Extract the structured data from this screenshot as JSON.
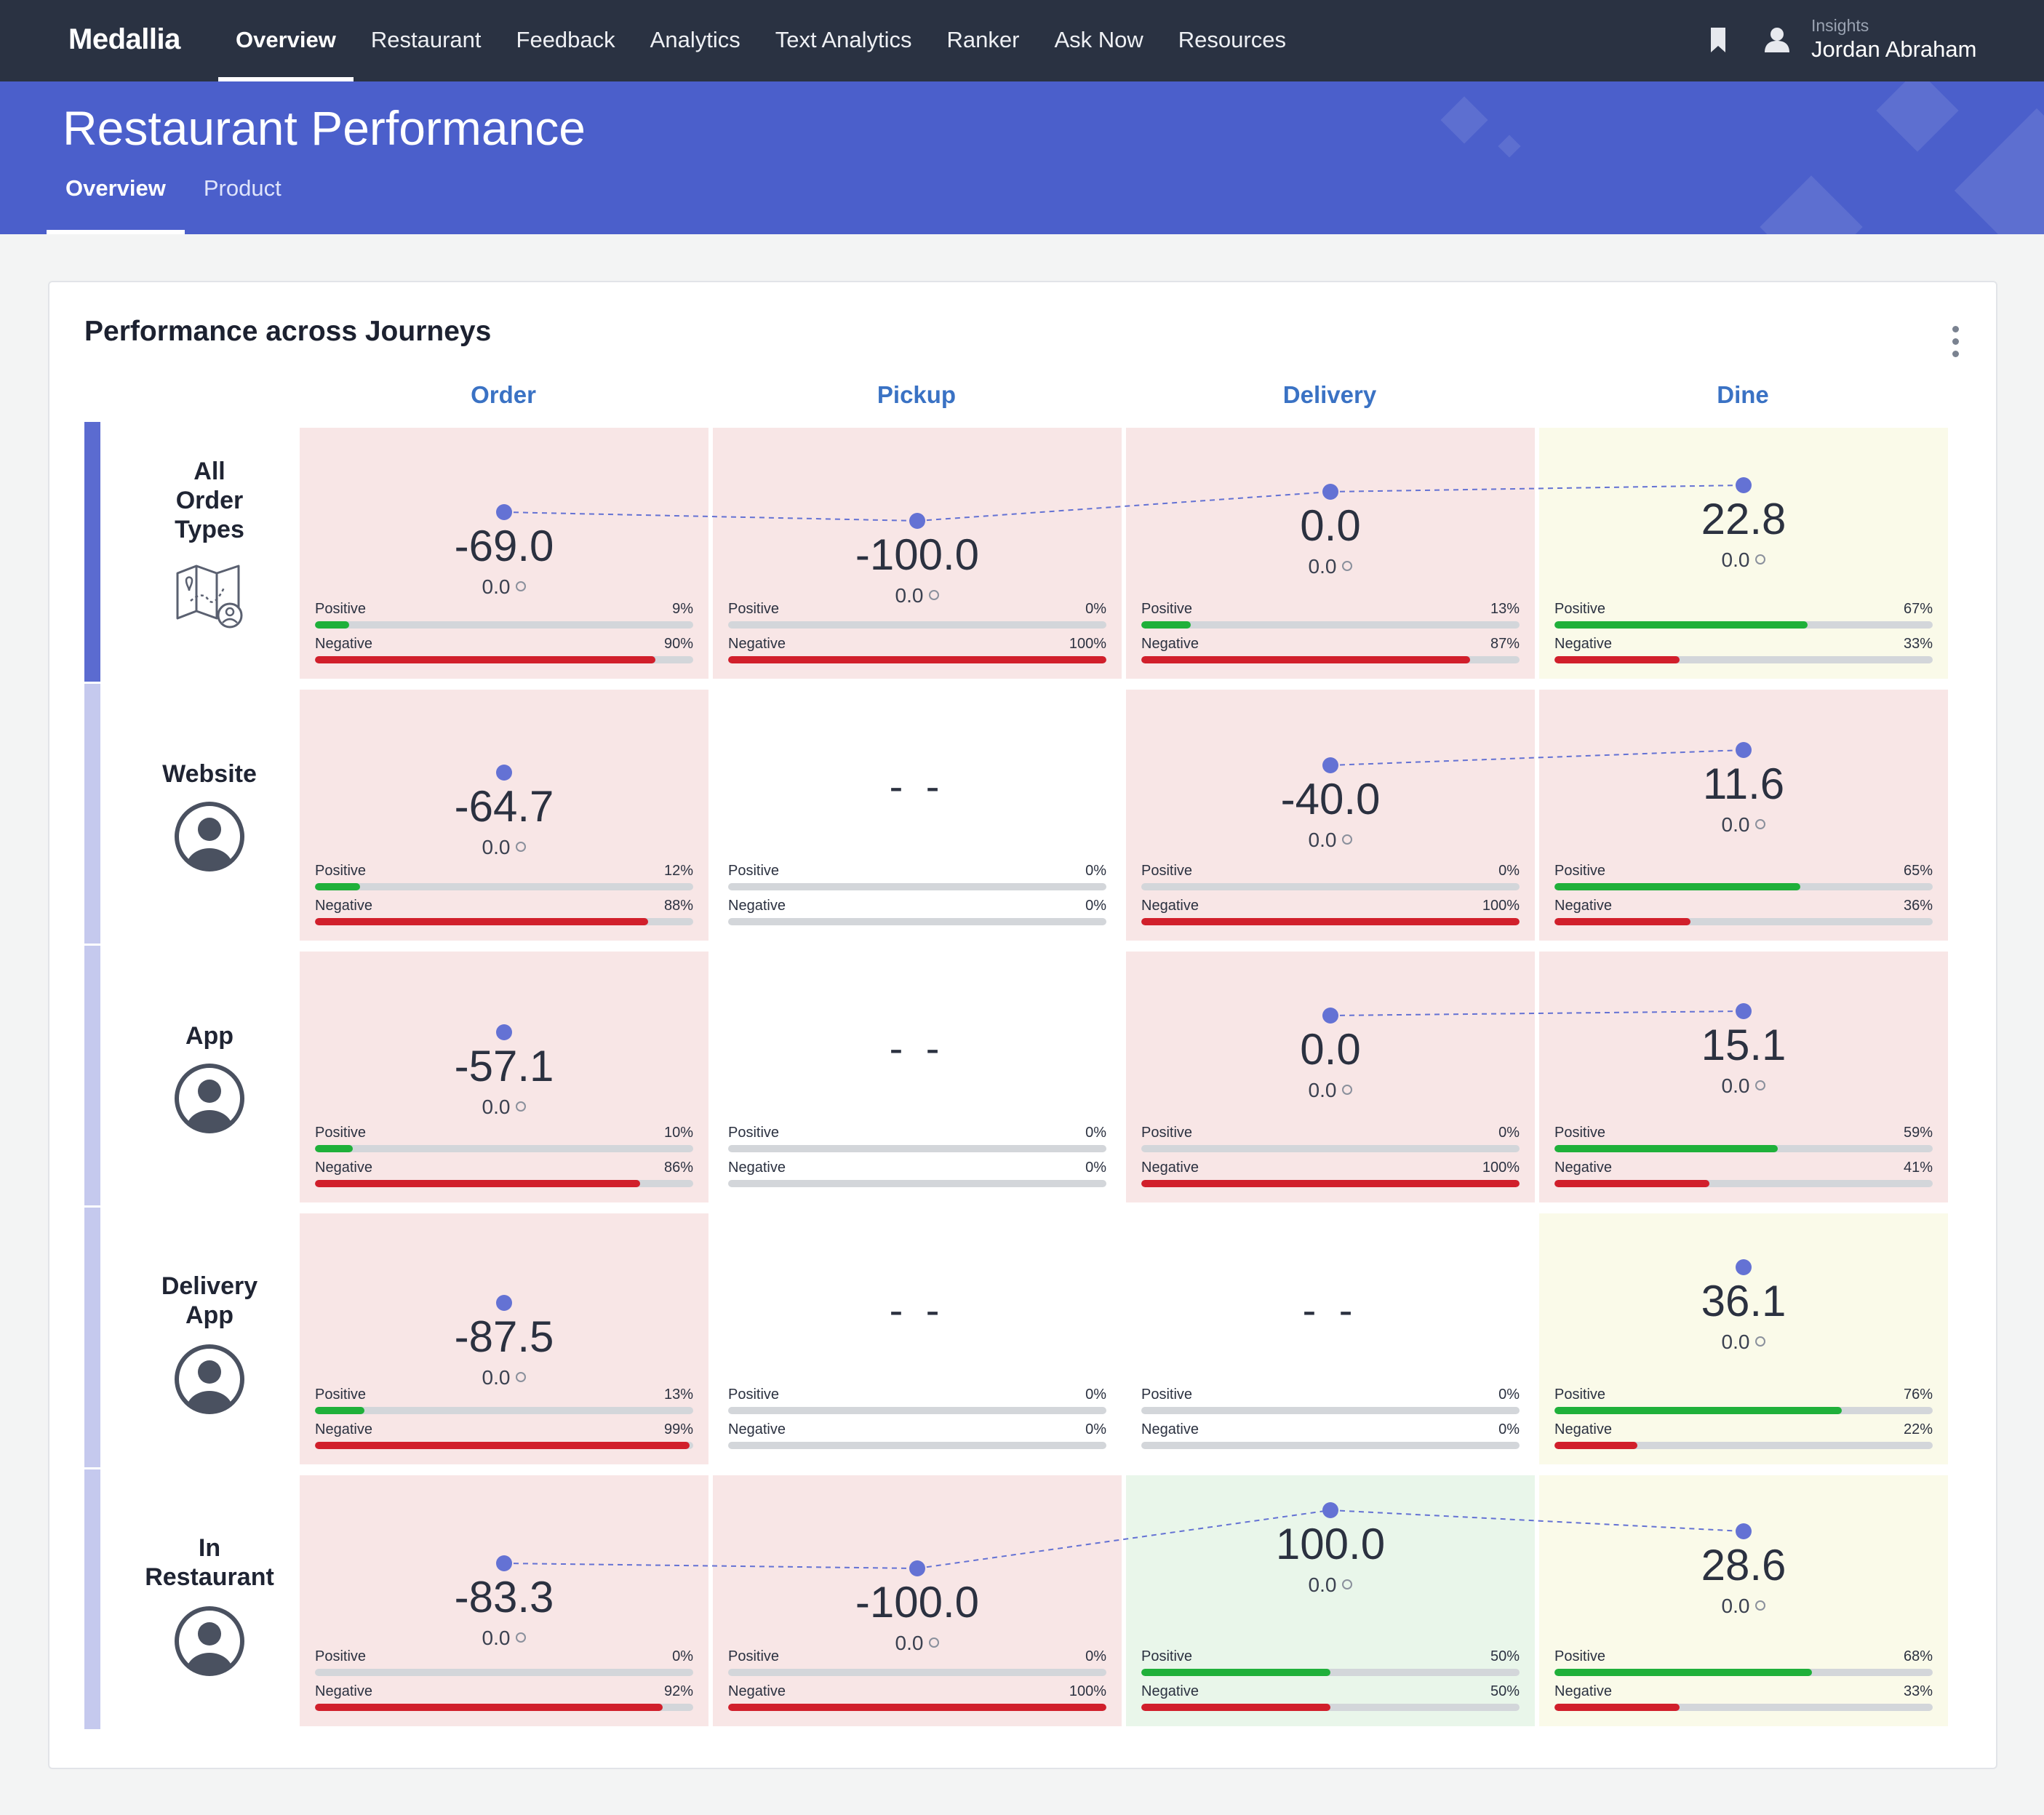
{
  "nav": {
    "brand": "Medallia",
    "items": [
      "Overview",
      "Restaurant",
      "Feedback",
      "Analytics",
      "Text Analytics",
      "Ranker",
      "Ask Now",
      "Resources"
    ],
    "active_index": 0,
    "user_sub": "Insights",
    "user_name": "Jordan Abraham"
  },
  "header": {
    "title": "Restaurant Performance",
    "tabs": [
      "Overview",
      "Product"
    ],
    "active_tab": 0
  },
  "card": {
    "title": "Performance across Journeys",
    "columns": [
      "Order",
      "Pickup",
      "Delivery",
      "Dine"
    ],
    "pos_label": "Positive",
    "neg_label": "Negative",
    "sub_value": "0.0",
    "empty_text": "- -",
    "rows": [
      {
        "label": "All Order Types",
        "icon": "map-user-icon",
        "cells": [
          {
            "score": "-69.0",
            "pos": 9,
            "neg": 90,
            "tone": "red"
          },
          {
            "score": "-100.0",
            "pos": 0,
            "neg": 100,
            "tone": "red"
          },
          {
            "score": "0.0",
            "pos": 13,
            "neg": 87,
            "tone": "red"
          },
          {
            "score": "22.8",
            "pos": 67,
            "neg": 33,
            "tone": "yellow"
          }
        ]
      },
      {
        "label": "Website",
        "icon": "user-circle-icon",
        "cells": [
          {
            "score": "-64.7",
            "pos": 12,
            "neg": 88,
            "tone": "red"
          },
          {
            "score": null,
            "pos": 0,
            "neg": 0,
            "tone": "white"
          },
          {
            "score": "-40.0",
            "pos": 0,
            "neg": 100,
            "tone": "red"
          },
          {
            "score": "11.6",
            "pos": 65,
            "neg": 36,
            "tone": "red"
          }
        ]
      },
      {
        "label": "App",
        "icon": "user-circle-icon",
        "cells": [
          {
            "score": "-57.1",
            "pos": 10,
            "neg": 86,
            "tone": "red"
          },
          {
            "score": null,
            "pos": 0,
            "neg": 0,
            "tone": "white"
          },
          {
            "score": "0.0",
            "pos": 0,
            "neg": 100,
            "tone": "red"
          },
          {
            "score": "15.1",
            "pos": 59,
            "neg": 41,
            "tone": "red"
          }
        ]
      },
      {
        "label": "Delivery App",
        "icon": "user-circle-icon",
        "cells": [
          {
            "score": "-87.5",
            "pos": 13,
            "neg": 99,
            "tone": "red"
          },
          {
            "score": null,
            "pos": 0,
            "neg": 0,
            "tone": "white"
          },
          {
            "score": null,
            "pos": 0,
            "neg": 0,
            "tone": "white"
          },
          {
            "score": "36.1",
            "pos": 76,
            "neg": 22,
            "tone": "yellow"
          }
        ]
      },
      {
        "label": "In Restaurant",
        "icon": "user-circle-icon",
        "cells": [
          {
            "score": "-83.3",
            "pos": 0,
            "neg": 92,
            "tone": "red"
          },
          {
            "score": "-100.0",
            "pos": 0,
            "neg": 100,
            "tone": "red"
          },
          {
            "score": "100.0",
            "pos": 50,
            "neg": 50,
            "tone": "green"
          },
          {
            "score": "28.6",
            "pos": 68,
            "neg": 33,
            "tone": "yellow"
          }
        ]
      }
    ]
  },
  "colors": {
    "nav_bg": "#2a3242",
    "header_bg": "#4b5fcb",
    "column_header": "#3a72c4",
    "dot": "#6472d4",
    "positive": "#1fb03a",
    "negative": "#d11f2b",
    "row_bar_active": "#5b6bd0",
    "row_bar": "#c5c9ee"
  }
}
